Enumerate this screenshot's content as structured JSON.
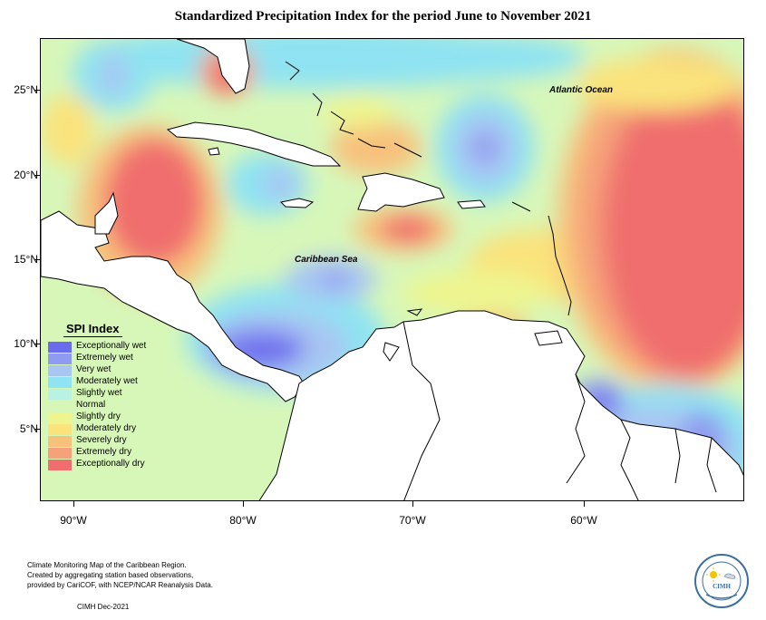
{
  "title": "Standardized Precipitation Index for the period June to November 2021",
  "map": {
    "ocean_labels": {
      "atlantic": "Atlantic Ocean",
      "caribbean": "Caribbean Sea"
    },
    "lat_labels": [
      "25°N",
      "20°N",
      "15°N",
      "10°N",
      "5°N"
    ],
    "lon_labels": [
      "90°W",
      "80°W",
      "70°W",
      "60°W"
    ]
  },
  "legend": {
    "title": "SPI Index",
    "items": [
      {
        "label": "Exceptionally wet",
        "color": "#6b6bee"
      },
      {
        "label": "Extremely wet",
        "color": "#8f9bf0"
      },
      {
        "label": "Very wet",
        "color": "#a9c6f3"
      },
      {
        "label": "Moderately wet",
        "color": "#8fe3f2"
      },
      {
        "label": "Slightly wet",
        "color": "#b9f2e3"
      },
      {
        "label": "Normal",
        "color": "#d7f7b9"
      },
      {
        "label": "Slightly dry",
        "color": "#eef58f"
      },
      {
        "label": "Moderately dry",
        "color": "#fae37c"
      },
      {
        "label": "Severely dry",
        "color": "#f8c17b"
      },
      {
        "label": "Extremely dry",
        "color": "#f5a179"
      },
      {
        "label": "Exceptionally dry",
        "color": "#f06e6e"
      }
    ]
  },
  "caption": {
    "lines": [
      "Climate Monitoring Map of the Caribbean Region.",
      "Created by aggregating station based observations,",
      "provided by CariCOF, with NCEP/NCAR Reanalysis Data."
    ],
    "date": "CIMH Dec-2021"
  },
  "logo": {
    "text": "CIMH"
  }
}
